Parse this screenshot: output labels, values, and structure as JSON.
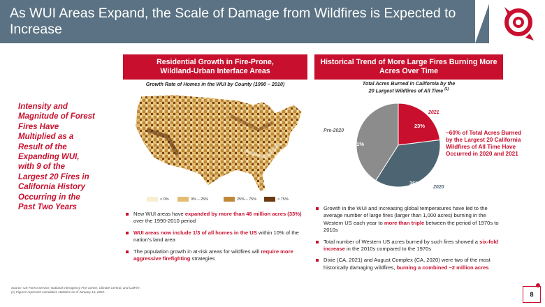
{
  "header": {
    "title": "As WUI Areas Expand, the Scale of Damage from Wildfires is Expected to Increase"
  },
  "left_callout": "Intensity and Magnitude of Forest Fires Have Multiplied as a Result of the Expanding WUI, with 9 of the Largest 20 Fires in California History Occurring in the Past Two Years",
  "left_panel": {
    "banner_line1": "Residential Growth in Fire-Prone,",
    "banner_line2": "Wildland-Urban Interface Areas",
    "map_caption": "Growth Rate of Homes in the WUI by County (1990 – 2010)",
    "legend": [
      {
        "label": "< 0%",
        "color": "#f7efd0"
      },
      {
        "label": "0% – 25%",
        "color": "#e3bd72"
      },
      {
        "label": "25% – 75%",
        "color": "#c0893a"
      },
      {
        "label": "> 75%",
        "color": "#6b3a12"
      }
    ],
    "bullets": [
      {
        "pre": "New WUI areas have ",
        "hl": "expanded by more than 46 million acres (33%)",
        "post": " over the 1990-2010 period"
      },
      {
        "pre": "",
        "hl": "WUI areas now include 1/3 of all homes in the US",
        "post": " within 10% of the nation’s land area"
      },
      {
        "pre": "The population growth in at-risk areas for wildfires will ",
        "hl": "require more aggressive firefighting",
        "post": " strategies"
      }
    ]
  },
  "right_panel": {
    "banner_line1": "Historical Trend of More Large Fires Burning More",
    "banner_line2": "Acres Over Time",
    "chart_caption_line1": "Total Acres Burned in California by the",
    "chart_caption_line2": "20 Largest Wildfires of All Time",
    "chart_caption_sup": "(1)",
    "callout": "~60% of Total Acres Burned by the Largest 20 California Wildfires of All Time Have Occurred in 2020 and 2021",
    "bullets": [
      {
        "pre": "Growth in the WUI and increasing global temperatures have led to the average number of large fires (larger than 1,000 acres) burning in the Western US each year to ",
        "hl": "more than triple",
        "post": " between the period of 1970s to 2010s"
      },
      {
        "pre": "Total number of Western US acres burned by such fires showed a ",
        "hl": "six-fold increase",
        "post": " in the 2010s compared to the 1970s"
      },
      {
        "pre": "Dixie (CA, 2021) and August Complex (CA, 2020) were two of the most historically damaging wildfires, ",
        "hl": "burning a combined ~2 million acres",
        "post": ""
      }
    ]
  },
  "chart_data": {
    "type": "pie",
    "title": "Total Acres Burned in California by the 20 Largest Wildfires of All Time",
    "slices": [
      {
        "name": "2021",
        "value": 23,
        "label": "23%",
        "color": "#c8102e"
      },
      {
        "name": "2020",
        "value": 36,
        "label": "36%",
        "color": "#4d6473"
      },
      {
        "name": "Pre-2020",
        "value": 41,
        "label": "41%",
        "color": "#8c8c8c"
      }
    ]
  },
  "footer": {
    "source": "Source: US Forest Service, National Interagency Fire Center, Climate Central, and CalFire.",
    "note": "(1)    Figures represent cumulative statistics as of January 13, 2022."
  },
  "page_number": "8"
}
